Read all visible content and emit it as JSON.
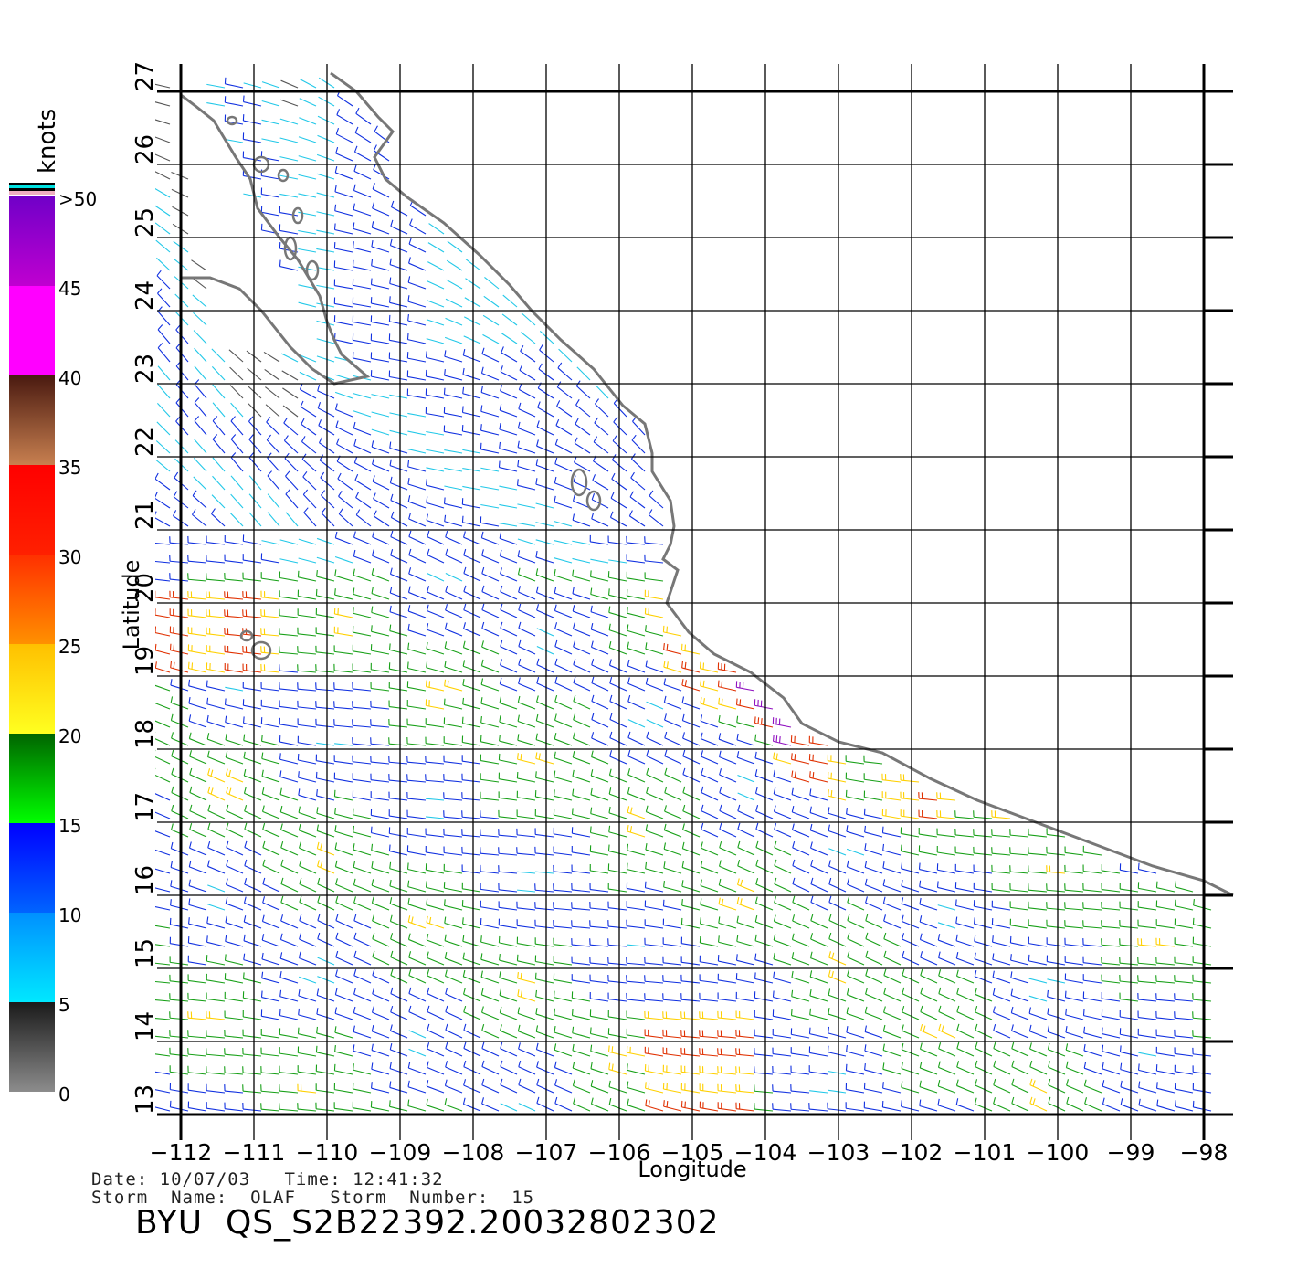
{
  "map": {
    "lon_range": [
      -112,
      -97.6
    ],
    "lat_range": [
      13,
      27.3
    ],
    "lon_ticks": [
      -112,
      -111,
      -110,
      -109,
      -108,
      -107,
      -106,
      -105,
      -104,
      -103,
      -102,
      -101,
      -100,
      -99,
      -98
    ],
    "lat_ticks": [
      13,
      14,
      15,
      16,
      17,
      18,
      19,
      20,
      21,
      22,
      23,
      24,
      25,
      26,
      27
    ],
    "lon_tick_labels": [
      "−112",
      "−111",
      "−110",
      "−109",
      "−108",
      "−107",
      "−106",
      "−105",
      "−104",
      "−103",
      "−102",
      "−101",
      "−100",
      "−99",
      "−98"
    ],
    "lat_tick_labels": [
      "13",
      "14",
      "15",
      "16",
      "17",
      "18",
      "19",
      "20",
      "21",
      "22",
      "23",
      "24",
      "25",
      "26",
      "27"
    ],
    "xlabel": "Longitude",
    "ylabel": "Latitude",
    "grid": true,
    "coast_color": "#777777",
    "grid_color": "#000000"
  },
  "colorbar": {
    "title": "knots",
    "tick_labels": [
      ">50",
      "45",
      "40",
      "35",
      "30",
      "25",
      "20",
      "15",
      "10",
      "5",
      "0"
    ],
    "tick_values": [
      50,
      45,
      40,
      35,
      30,
      25,
      20,
      15,
      10,
      5,
      0
    ],
    "bands": [
      {
        "from": 0,
        "to": 5,
        "top": "#1a1a1a",
        "bottom": "#8c8c8c"
      },
      {
        "from": 5,
        "to": 10,
        "top": "#0090ff",
        "bottom": "#00e8ff"
      },
      {
        "from": 10,
        "to": 15,
        "top": "#0000ff",
        "bottom": "#0064ff"
      },
      {
        "from": 15,
        "to": 20,
        "top": "#006400",
        "bottom": "#00ff00"
      },
      {
        "from": 20,
        "to": 25,
        "top": "#ffc000",
        "bottom": "#ffff20"
      },
      {
        "from": 25,
        "to": 30,
        "top": "#ff3000",
        "bottom": "#ff9000"
      },
      {
        "from": 30,
        "to": 35,
        "top": "#ff0000",
        "bottom": "#ff2000"
      },
      {
        "from": 35,
        "to": 40,
        "top": "#4a1a10",
        "bottom": "#c88050"
      },
      {
        "from": 40,
        "to": 45,
        "top": "#ff00ff",
        "bottom": "#ff00ff"
      },
      {
        "from": 45,
        "to": 50,
        "top": "#7000c8",
        "bottom": "#c000d0"
      }
    ]
  },
  "wind_colors": {
    "calm": "#555555",
    "light": "#22c8e8",
    "moderate": "#1030e0",
    "fresh": "#18a018",
    "strong": "#ffd000",
    "gale": "#e03000",
    "storm": "#9010c0"
  },
  "footer": {
    "line1": "Date: 10/07/03   Time: 12:41:32",
    "line2": "Storm  Name:  OLAF   Storm  Number:  15",
    "product": "BYU  QS_S2B22392.20032802302"
  }
}
